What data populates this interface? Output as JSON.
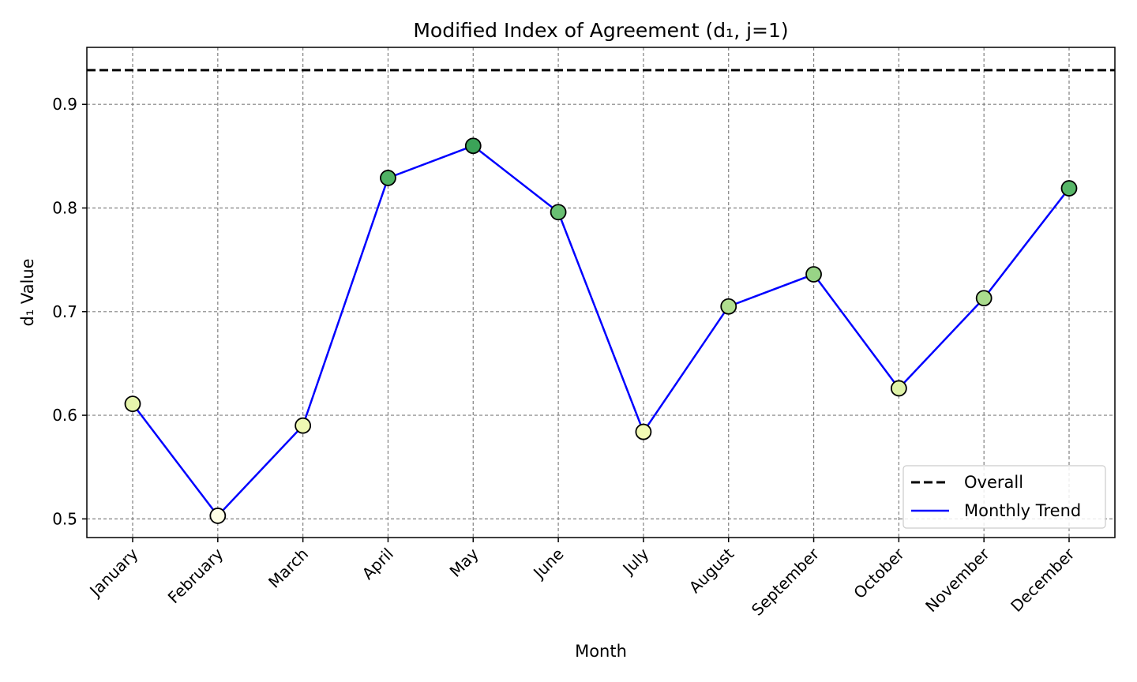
{
  "chart_data": {
    "type": "line",
    "title": "Modified Index of Agreement (d₁, j=1)",
    "xlabel": "Month",
    "ylabel": "d₁ Value",
    "categories": [
      "January",
      "February",
      "March",
      "April",
      "May",
      "June",
      "July",
      "August",
      "September",
      "October",
      "November",
      "December"
    ],
    "series": [
      {
        "name": "Monthly Trend",
        "color": "#0000ff",
        "values": [
          0.611,
          0.503,
          0.59,
          0.829,
          0.86,
          0.796,
          0.584,
          0.705,
          0.736,
          0.626,
          0.713,
          0.819
        ]
      }
    ],
    "reference_lines": [
      {
        "name": "Overall",
        "value": 0.933,
        "color": "#000000",
        "style": "dashed"
      }
    ],
    "marker_colormap": "YlGn",
    "marker_edge_color": "#000000",
    "ylim": [
      0.482,
      0.955
    ],
    "yticks": [
      0.5,
      0.6,
      0.7,
      0.8,
      0.9
    ],
    "grid": true,
    "legend_position": "lower-right",
    "legend": [
      {
        "label": "Overall",
        "style": "dashed",
        "color": "#000000"
      },
      {
        "label": "Monthly Trend",
        "style": "solid",
        "color": "#0000ff"
      }
    ]
  }
}
